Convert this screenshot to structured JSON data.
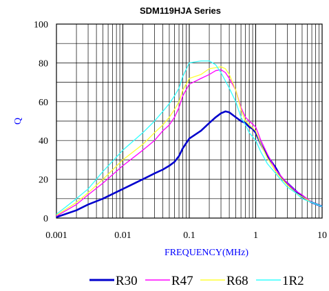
{
  "chart_data": {
    "type": "line",
    "title": "SDM119HJA Series",
    "xlabel": "FREQUENCY(MHz)",
    "ylabel": "Q",
    "xscale": "log",
    "xlim": [
      0.001,
      10
    ],
    "ylim": [
      0,
      100
    ],
    "x_ticks": [
      "0.001",
      "0.01",
      "0.1",
      "1",
      "10"
    ],
    "y_ticks": [
      "0",
      "20",
      "40",
      "60",
      "80",
      "100"
    ],
    "grid": true,
    "legend_position": "bottom",
    "series": [
      {
        "name": "R30",
        "color": "#0000cc",
        "points": [
          [
            0.001,
            0.5
          ],
          [
            0.002,
            4
          ],
          [
            0.003,
            7
          ],
          [
            0.005,
            10
          ],
          [
            0.01,
            15
          ],
          [
            0.02,
            20
          ],
          [
            0.03,
            23
          ],
          [
            0.04,
            25
          ],
          [
            0.05,
            27
          ],
          [
            0.06,
            29
          ],
          [
            0.07,
            32
          ],
          [
            0.08,
            36
          ],
          [
            0.1,
            41
          ],
          [
            0.15,
            45
          ],
          [
            0.2,
            49
          ],
          [
            0.25,
            52
          ],
          [
            0.3,
            54
          ],
          [
            0.35,
            55
          ],
          [
            0.4,
            54.5
          ],
          [
            0.5,
            52
          ],
          [
            0.6,
            50
          ],
          [
            0.7,
            49
          ],
          [
            0.8,
            47
          ],
          [
            0.9,
            46
          ],
          [
            1,
            44
          ],
          [
            1.2,
            38
          ],
          [
            1.5,
            32
          ],
          [
            2,
            26
          ],
          [
            2.5,
            20
          ],
          [
            3,
            18
          ],
          [
            4,
            14
          ],
          [
            5,
            11
          ],
          [
            7,
            8
          ],
          [
            10,
            6
          ]
        ]
      },
      {
        "name": "R47",
        "color": "#ff00ff",
        "points": [
          [
            0.001,
            1
          ],
          [
            0.002,
            7
          ],
          [
            0.003,
            12
          ],
          [
            0.005,
            18
          ],
          [
            0.01,
            27
          ],
          [
            0.02,
            35
          ],
          [
            0.03,
            40
          ],
          [
            0.04,
            45
          ],
          [
            0.05,
            48
          ],
          [
            0.06,
            52
          ],
          [
            0.07,
            57
          ],
          [
            0.08,
            63
          ],
          [
            0.1,
            69
          ],
          [
            0.15,
            72
          ],
          [
            0.2,
            74
          ],
          [
            0.25,
            76
          ],
          [
            0.3,
            76.5
          ],
          [
            0.35,
            75
          ],
          [
            0.4,
            72
          ],
          [
            0.5,
            66
          ],
          [
            0.6,
            57
          ],
          [
            0.7,
            52
          ],
          [
            0.8,
            50
          ],
          [
            1,
            47
          ],
          [
            1.2,
            40
          ],
          [
            1.5,
            33
          ],
          [
            2,
            25
          ],
          [
            2.5,
            21
          ],
          [
            3,
            18
          ],
          [
            4,
            14
          ],
          [
            5,
            12
          ],
          [
            7,
            8
          ],
          [
            10,
            6
          ]
        ]
      },
      {
        "name": "R68",
        "color": "#ffff33",
        "points": [
          [
            0.001,
            1.5
          ],
          [
            0.002,
            8
          ],
          [
            0.003,
            13
          ],
          [
            0.005,
            20
          ],
          [
            0.01,
            30
          ],
          [
            0.02,
            38
          ],
          [
            0.03,
            44
          ],
          [
            0.04,
            48
          ],
          [
            0.05,
            52
          ],
          [
            0.06,
            56
          ],
          [
            0.07,
            60
          ],
          [
            0.08,
            66
          ],
          [
            0.1,
            72
          ],
          [
            0.15,
            74
          ],
          [
            0.2,
            77
          ],
          [
            0.25,
            77.5
          ],
          [
            0.3,
            78
          ],
          [
            0.35,
            77
          ],
          [
            0.4,
            74
          ],
          [
            0.5,
            66
          ],
          [
            0.6,
            56
          ],
          [
            0.7,
            50
          ],
          [
            0.8,
            48
          ],
          [
            1,
            45
          ],
          [
            1.2,
            38
          ],
          [
            1.5,
            31
          ],
          [
            2,
            24
          ],
          [
            2.5,
            20
          ],
          [
            3,
            17
          ],
          [
            4,
            13
          ],
          [
            5,
            11
          ],
          [
            7,
            8
          ],
          [
            10,
            6
          ]
        ]
      },
      {
        "name": "1R2",
        "color": "#33ffff",
        "points": [
          [
            0.001,
            2
          ],
          [
            0.002,
            10
          ],
          [
            0.003,
            15
          ],
          [
            0.005,
            24
          ],
          [
            0.01,
            35
          ],
          [
            0.02,
            44
          ],
          [
            0.03,
            50
          ],
          [
            0.04,
            55
          ],
          [
            0.05,
            59
          ],
          [
            0.06,
            63
          ],
          [
            0.07,
            67
          ],
          [
            0.08,
            73
          ],
          [
            0.1,
            80
          ],
          [
            0.15,
            81
          ],
          [
            0.2,
            81
          ],
          [
            0.25,
            79
          ],
          [
            0.3,
            75
          ],
          [
            0.4,
            67
          ],
          [
            0.5,
            60
          ],
          [
            0.6,
            52
          ],
          [
            0.7,
            48
          ],
          [
            0.8,
            44
          ],
          [
            1,
            40
          ],
          [
            1.2,
            34
          ],
          [
            1.5,
            28
          ],
          [
            2,
            23
          ],
          [
            2.5,
            19
          ],
          [
            3,
            16
          ],
          [
            4,
            13
          ],
          [
            5,
            10
          ],
          [
            7,
            8
          ],
          [
            10,
            6
          ]
        ]
      }
    ]
  }
}
